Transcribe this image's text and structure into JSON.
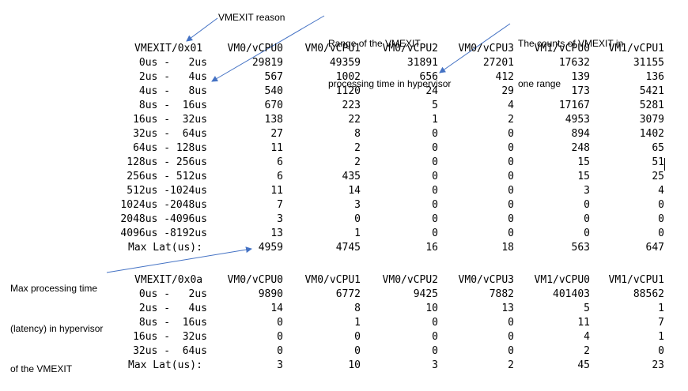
{
  "annotations": {
    "reason": "VMEXIT reason",
    "range": [
      "Range of the VMEXIT",
      "processing time in hypervisor"
    ],
    "counts": [
      "The counts of VMEXIT in",
      "one range"
    ],
    "max": [
      "Max processing time",
      "(latency) in hypervisor",
      "of the VMEXIT"
    ],
    "arrow_color": "#4472C4"
  },
  "columns": [
    "VM0/vCPU0",
    "VM0/vCPU1",
    "VM0/vCPU2",
    "VM0/vCPU3",
    "VM1/vCPU0",
    "VM1/vCPU1"
  ],
  "tables": [
    {
      "reason": "VMEXIT/0x01",
      "rows": [
        {
          "range": "0us -   2us",
          "values": [
            "29819",
            "49359",
            "31891",
            "27201",
            "17632",
            "31155"
          ]
        },
        {
          "range": "2us -   4us",
          "values": [
            "567",
            "1002",
            "656",
            "412",
            "139",
            "136"
          ]
        },
        {
          "range": "4us -   8us",
          "values": [
            "540",
            "1120",
            "24",
            "29",
            "173",
            "5421"
          ]
        },
        {
          "range": "8us -  16us",
          "values": [
            "670",
            "223",
            "5",
            "4",
            "17167",
            "5281"
          ]
        },
        {
          "range": "16us -  32us",
          "values": [
            "138",
            "22",
            "1",
            "2",
            "4953",
            "3079"
          ]
        },
        {
          "range": "32us -  64us",
          "values": [
            "27",
            "8",
            "0",
            "0",
            "894",
            "1402"
          ]
        },
        {
          "range": "64us - 128us",
          "values": [
            "11",
            "2",
            "0",
            "0",
            "248",
            "65"
          ]
        },
        {
          "range": "128us - 256us",
          "values": [
            "6",
            "2",
            "0",
            "0",
            "15",
            "51"
          ]
        },
        {
          "range": "256us - 512us",
          "values": [
            "6",
            "435",
            "0",
            "0",
            "15",
            "25"
          ]
        },
        {
          "range": "512us -1024us",
          "values": [
            "11",
            "14",
            "0",
            "0",
            "3",
            "4"
          ]
        },
        {
          "range": "1024us -2048us",
          "values": [
            "7",
            "3",
            "0",
            "0",
            "0",
            "0"
          ]
        },
        {
          "range": "2048us -4096us",
          "values": [
            "3",
            "0",
            "0",
            "0",
            "0",
            "0"
          ]
        },
        {
          "range": "4096us -8192us",
          "values": [
            "13",
            "1",
            "0",
            "0",
            "0",
            "0"
          ]
        }
      ],
      "max_label": "Max Lat(us):",
      "max_values": [
        "4959",
        "4745",
        "16",
        "18",
        "563",
        "647"
      ]
    },
    {
      "reason": "VMEXIT/0x0a",
      "rows": [
        {
          "range": "0us -   2us",
          "values": [
            "9890",
            "6772",
            "9425",
            "7882",
            "401403",
            "88562"
          ]
        },
        {
          "range": "2us -   4us",
          "values": [
            "14",
            "8",
            "10",
            "13",
            "5",
            "1"
          ]
        },
        {
          "range": "8us -  16us",
          "values": [
            "0",
            "1",
            "0",
            "0",
            "11",
            "7"
          ]
        },
        {
          "range": "16us -  32us",
          "values": [
            "0",
            "0",
            "0",
            "0",
            "4",
            "1"
          ]
        },
        {
          "range": "32us -  64us",
          "values": [
            "0",
            "0",
            "0",
            "0",
            "2",
            "0"
          ]
        }
      ],
      "max_label": "Max Lat(us):",
      "max_values": [
        "3",
        "10",
        "3",
        "2",
        "45",
        "23"
      ]
    }
  ]
}
